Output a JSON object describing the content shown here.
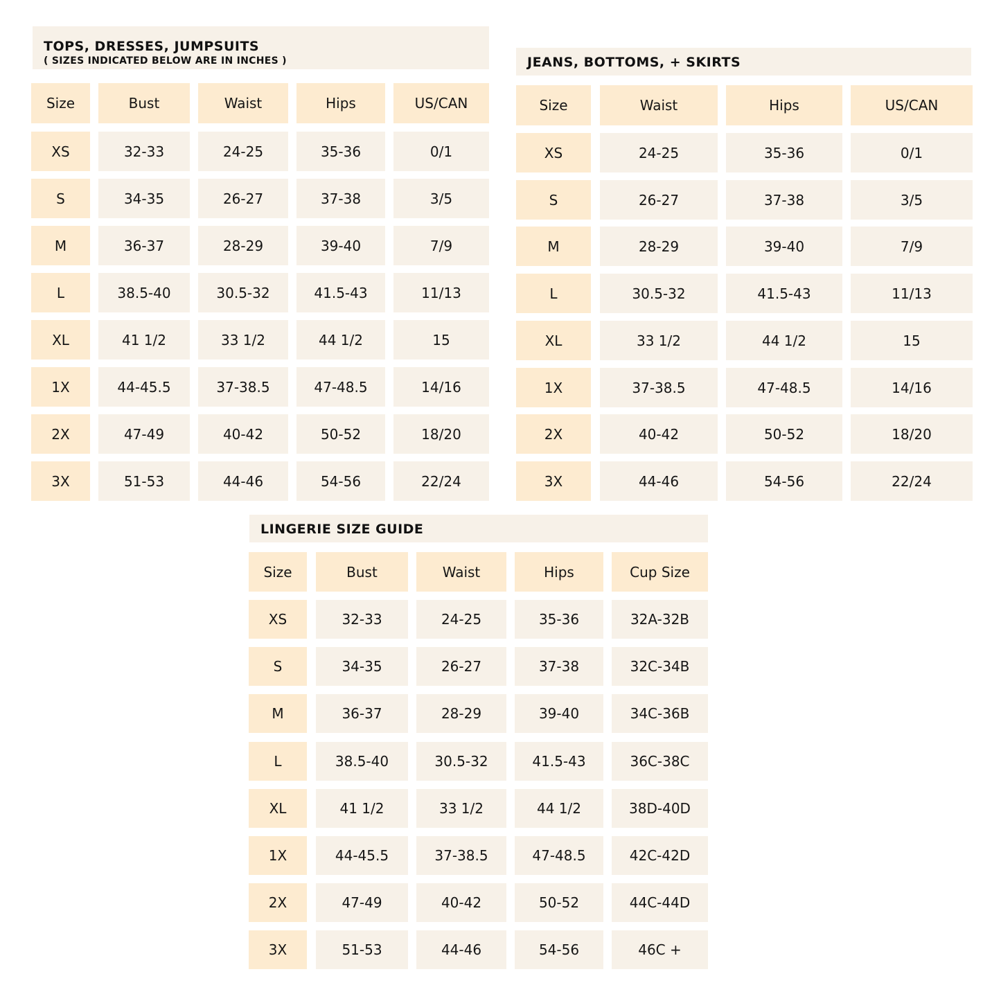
{
  "colors": {
    "header_bg": "#FDEBD0",
    "cell_bg": "#F7F1E8",
    "text": "#151515"
  },
  "tables": [
    {
      "title": "TOPS, DRESSES, JUMPSUITS",
      "subtitle": "( SIZES INDICATED BELOW ARE IN INCHES )",
      "headers": [
        "Size",
        "Bust",
        "Waist",
        "Hips",
        "US/CAN"
      ],
      "rows": [
        [
          "XS",
          "32-33",
          "24-25",
          "35-36",
          "0/1"
        ],
        [
          "S",
          "34-35",
          "26-27",
          "37-38",
          "3/5"
        ],
        [
          "M",
          "36-37",
          "28-29",
          "39-40",
          "7/9"
        ],
        [
          "L",
          "38.5-40",
          "30.5-32",
          "41.5-43",
          "11/13"
        ],
        [
          "XL",
          "41 1/2",
          "33 1/2",
          "44 1/2",
          "15"
        ],
        [
          "1X",
          "44-45.5",
          "37-38.5",
          "47-48.5",
          "14/16"
        ],
        [
          "2X",
          "47-49",
          "40-42",
          "50-52",
          "18/20"
        ],
        [
          "3X",
          "51-53",
          "44-46",
          "54-56",
          "22/24"
        ]
      ]
    },
    {
      "title": "JEANS, BOTTOMS, + SKIRTS",
      "headers": [
        "Size",
        "Waist",
        "Hips",
        "US/CAN"
      ],
      "rows": [
        [
          "XS",
          "24-25",
          "35-36",
          "0/1"
        ],
        [
          "S",
          "26-27",
          "37-38",
          "3/5"
        ],
        [
          "M",
          "28-29",
          "39-40",
          "7/9"
        ],
        [
          "L",
          "30.5-32",
          "41.5-43",
          "11/13"
        ],
        [
          "XL",
          "33 1/2",
          "44 1/2",
          "15"
        ],
        [
          "1X",
          "37-38.5",
          "47-48.5",
          "14/16"
        ],
        [
          "2X",
          "40-42",
          "50-52",
          "18/20"
        ],
        [
          "3X",
          "44-46",
          "54-56",
          "22/24"
        ]
      ]
    },
    {
      "title": "LINGERIE SIZE GUIDE",
      "headers": [
        "Size",
        "Bust",
        "Waist",
        "Hips",
        "Cup Size"
      ],
      "rows": [
        [
          "XS",
          "32-33",
          "24-25",
          "35-36",
          "32A-32B"
        ],
        [
          "S",
          "34-35",
          "26-27",
          "37-38",
          "32C-34B"
        ],
        [
          "M",
          "36-37",
          "28-29",
          "39-40",
          "34C-36B"
        ],
        [
          "L",
          "38.5-40",
          "30.5-32",
          "41.5-43",
          "36C-38C"
        ],
        [
          "XL",
          "41 1/2",
          "33 1/2",
          "44 1/2",
          "38D-40D"
        ],
        [
          "1X",
          "44-45.5",
          "37-38.5",
          "47-48.5",
          "42C-42D"
        ],
        [
          "2X",
          "47-49",
          "40-42",
          "50-52",
          "44C-44D"
        ],
        [
          "3X",
          "51-53",
          "44-46",
          "54-56",
          "46C +"
        ]
      ]
    }
  ]
}
